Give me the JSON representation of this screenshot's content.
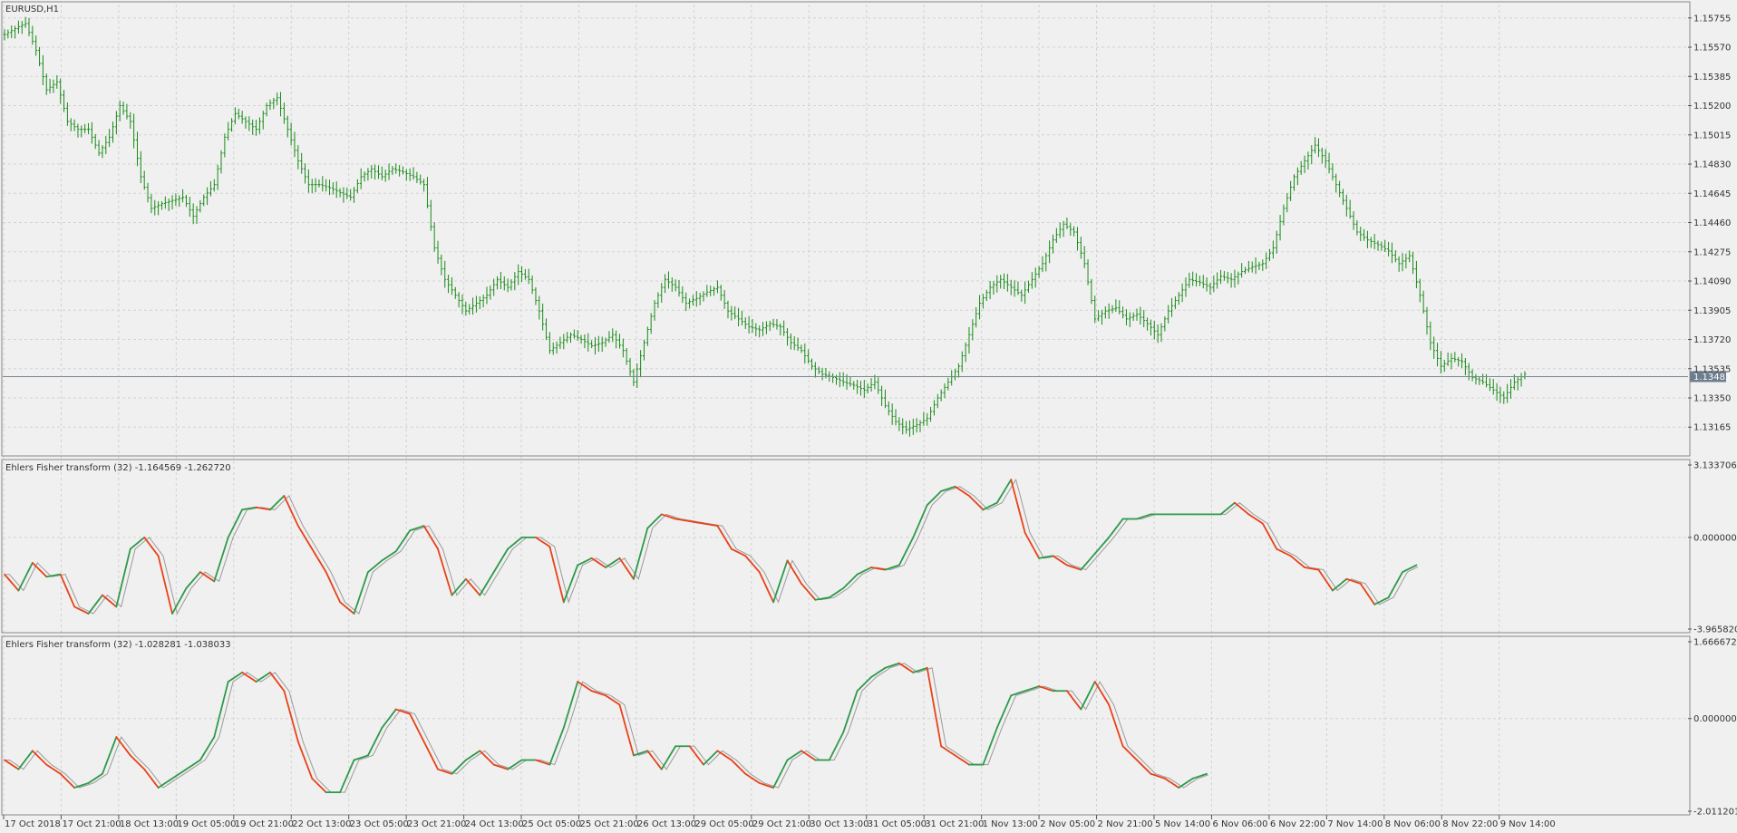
{
  "window": {
    "main_title": "EURUSD,H1",
    "current_price_label": "1.13485"
  },
  "chart_data": [
    {
      "type": "candlestick",
      "title": "EURUSD,H1",
      "ylim": [
        1.13,
        1.1584
      ],
      "y_ticks": [
        "1.15755",
        "1.15570",
        "1.15385",
        "1.15200",
        "1.15015",
        "1.14830",
        "1.14645",
        "1.14460",
        "1.14275",
        "1.14090",
        "1.13905",
        "1.13720",
        "1.13535",
        "1.13350",
        "1.13165"
      ],
      "current_price": 1.13485,
      "grid": true,
      "bar_color": "#1a8a1a",
      "close_anchors": [
        [
          0,
          1.1565
        ],
        [
          4,
          1.157
        ],
        [
          6,
          1.1572
        ],
        [
          9,
          1.1555
        ],
        [
          12,
          1.153
        ],
        [
          15,
          1.1535
        ],
        [
          18,
          1.151
        ],
        [
          21,
          1.1505
        ],
        [
          24,
          1.1505
        ],
        [
          27,
          1.149
        ],
        [
          30,
          1.15
        ],
        [
          33,
          1.152
        ],
        [
          36,
          1.151
        ],
        [
          39,
          1.1475
        ],
        [
          42,
          1.1455
        ],
        [
          45,
          1.1458
        ],
        [
          48,
          1.146
        ],
        [
          51,
          1.1462
        ],
        [
          54,
          1.145
        ],
        [
          57,
          1.1462
        ],
        [
          60,
          1.147
        ],
        [
          63,
          1.15
        ],
        [
          66,
          1.1515
        ],
        [
          69,
          1.151
        ],
        [
          72,
          1.1505
        ],
        [
          75,
          1.152
        ],
        [
          78,
          1.1525
        ],
        [
          81,
          1.1505
        ],
        [
          84,
          1.1485
        ],
        [
          87,
          1.147
        ],
        [
          90,
          1.147
        ],
        [
          93,
          1.1468
        ],
        [
          96,
          1.1465
        ],
        [
          99,
          1.1462
        ],
        [
          102,
          1.1475
        ],
        [
          105,
          1.148
        ],
        [
          108,
          1.1475
        ],
        [
          111,
          1.148
        ],
        [
          114,
          1.1478
        ],
        [
          117,
          1.1475
        ],
        [
          120,
          1.147
        ],
        [
          123,
          1.143
        ],
        [
          126,
          1.141
        ],
        [
          129,
          1.14
        ],
        [
          132,
          1.139
        ],
        [
          135,
          1.1395
        ],
        [
          138,
          1.14
        ],
        [
          141,
          1.141
        ],
        [
          144,
          1.1405
        ],
        [
          147,
          1.1415
        ],
        [
          150,
          1.141
        ],
        [
          153,
          1.139
        ],
        [
          156,
          1.1365
        ],
        [
          159,
          1.137
        ],
        [
          162,
          1.1375
        ],
        [
          165,
          1.1372
        ],
        [
          168,
          1.1368
        ],
        [
          171,
          1.137
        ],
        [
          174,
          1.1375
        ],
        [
          177,
          1.1365
        ],
        [
          180,
          1.1345
        ],
        [
          183,
          1.137
        ],
        [
          186,
          1.1395
        ],
        [
          189,
          1.141
        ],
        [
          192,
          1.1405
        ],
        [
          195,
          1.1395
        ],
        [
          198,
          1.1398
        ],
        [
          201,
          1.1402
        ],
        [
          204,
          1.1405
        ],
        [
          207,
          1.139
        ],
        [
          210,
          1.1385
        ],
        [
          213,
          1.138
        ],
        [
          216,
          1.1378
        ],
        [
          219,
          1.1382
        ],
        [
          222,
          1.138
        ],
        [
          225,
          1.137
        ],
        [
          228,
          1.1365
        ],
        [
          231,
          1.1355
        ],
        [
          234,
          1.135
        ],
        [
          237,
          1.1348
        ],
        [
          240,
          1.1345
        ],
        [
          243,
          1.1343
        ],
        [
          246,
          1.134
        ],
        [
          249,
          1.1345
        ],
        [
          252,
          1.133
        ],
        [
          255,
          1.132
        ],
        [
          258,
          1.1315
        ],
        [
          261,
          1.1318
        ],
        [
          264,
          1.1322
        ],
        [
          267,
          1.1335
        ],
        [
          270,
          1.1345
        ],
        [
          273,
          1.1355
        ],
        [
          276,
          1.1375
        ],
        [
          279,
          1.1395
        ],
        [
          282,
          1.1405
        ],
        [
          285,
          1.141
        ],
        [
          288,
          1.1405
        ],
        [
          291,
          1.14
        ],
        [
          294,
          1.141
        ],
        [
          297,
          1.142
        ],
        [
          300,
          1.1435
        ],
        [
          303,
          1.1445
        ],
        [
          306,
          1.144
        ],
        [
          309,
          1.142
        ],
        [
          312,
          1.1385
        ],
        [
          315,
          1.139
        ],
        [
          318,
          1.1392
        ],
        [
          321,
          1.1385
        ],
        [
          324,
          1.1388
        ],
        [
          327,
          1.1382
        ],
        [
          330,
          1.1375
        ],
        [
          333,
          1.139
        ],
        [
          336,
          1.14
        ],
        [
          339,
          1.141
        ],
        [
          342,
          1.1408
        ],
        [
          345,
          1.1405
        ],
        [
          348,
          1.1412
        ],
        [
          351,
          1.141
        ],
        [
          354,
          1.1415
        ],
        [
          357,
          1.1418
        ],
        [
          360,
          1.142
        ],
        [
          363,
          1.143
        ],
        [
          366,
          1.1455
        ],
        [
          369,
          1.1475
        ],
        [
          372,
          1.1485
        ],
        [
          375,
          1.1495
        ],
        [
          378,
          1.1485
        ],
        [
          381,
          1.147
        ],
        [
          384,
          1.1455
        ],
        [
          387,
          1.144
        ],
        [
          390,
          1.1435
        ],
        [
          393,
          1.1432
        ],
        [
          396,
          1.1428
        ],
        [
          399,
          1.142
        ],
        [
          402,
          1.1425
        ],
        [
          405,
          1.14
        ],
        [
          408,
          1.137
        ],
        [
          411,
          1.1355
        ],
        [
          414,
          1.136
        ],
        [
          417,
          1.1358
        ],
        [
          420,
          1.1348
        ],
        [
          423,
          1.1345
        ],
        [
          426,
          1.134
        ],
        [
          429,
          1.1335
        ],
        [
          432,
          1.1345
        ],
        [
          435,
          1.135
        ]
      ]
    },
    {
      "type": "line",
      "title": "Ehlers Fisher transform (32) -1.164569 -1.262720",
      "ylim": [
        -3.96582,
        3.133706
      ],
      "y_ticks": [
        "3.133706",
        "0.000000",
        "-3.965820"
      ],
      "up_color": "#2e9a4a",
      "down_color": "#e8431a",
      "signal_color": "#9a9a9a",
      "anchors": [
        [
          0,
          -1.6
        ],
        [
          4,
          -2.3
        ],
        [
          8,
          -1.1
        ],
        [
          12,
          -1.7
        ],
        [
          16,
          -1.6
        ],
        [
          20,
          -3.0
        ],
        [
          24,
          -3.3
        ],
        [
          28,
          -2.5
        ],
        [
          32,
          -3.0
        ],
        [
          36,
          -0.5
        ],
        [
          40,
          0.0
        ],
        [
          44,
          -0.8
        ],
        [
          48,
          -3.3
        ],
        [
          52,
          -2.2
        ],
        [
          56,
          -1.5
        ],
        [
          60,
          -1.9
        ],
        [
          64,
          0.0
        ],
        [
          68,
          1.2
        ],
        [
          72,
          1.3
        ],
        [
          76,
          1.2
        ],
        [
          80,
          1.8
        ],
        [
          84,
          0.5
        ],
        [
          88,
          -0.5
        ],
        [
          92,
          -1.5
        ],
        [
          96,
          -2.8
        ],
        [
          100,
          -3.3
        ],
        [
          104,
          -1.5
        ],
        [
          108,
          -1.0
        ],
        [
          112,
          -0.6
        ],
        [
          116,
          0.3
        ],
        [
          120,
          0.5
        ],
        [
          124,
          -0.5
        ],
        [
          128,
          -2.5
        ],
        [
          132,
          -1.8
        ],
        [
          136,
          -2.5
        ],
        [
          140,
          -1.5
        ],
        [
          144,
          -0.5
        ],
        [
          148,
          0.0
        ],
        [
          152,
          0.0
        ],
        [
          156,
          -0.4
        ],
        [
          160,
          -2.8
        ],
        [
          164,
          -1.2
        ],
        [
          168,
          -0.9
        ],
        [
          172,
          -1.3
        ],
        [
          176,
          -0.9
        ],
        [
          180,
          -1.8
        ],
        [
          184,
          0.4
        ],
        [
          188,
          1.0
        ],
        [
          192,
          0.8
        ],
        [
          196,
          0.7
        ],
        [
          200,
          0.6
        ],
        [
          204,
          0.5
        ],
        [
          208,
          -0.5
        ],
        [
          212,
          -0.8
        ],
        [
          216,
          -1.5
        ],
        [
          220,
          -2.8
        ],
        [
          224,
          -1.0
        ],
        [
          228,
          -2.0
        ],
        [
          232,
          -2.7
        ],
        [
          236,
          -2.6
        ],
        [
          240,
          -2.2
        ],
        [
          244,
          -1.6
        ],
        [
          248,
          -1.3
        ],
        [
          252,
          -1.4
        ],
        [
          256,
          -1.2
        ],
        [
          260,
          0.0
        ],
        [
          264,
          1.4
        ],
        [
          268,
          2.0
        ],
        [
          272,
          2.2
        ],
        [
          276,
          1.8
        ],
        [
          280,
          1.2
        ],
        [
          284,
          1.5
        ],
        [
          288,
          2.5
        ],
        [
          292,
          0.2
        ],
        [
          296,
          -0.9
        ],
        [
          300,
          -0.8
        ],
        [
          304,
          -1.2
        ],
        [
          308,
          -1.4
        ],
        [
          312,
          -0.7
        ],
        [
          316,
          0.0
        ],
        [
          320,
          0.8
        ],
        [
          324,
          0.8
        ],
        [
          328,
          1.0
        ],
        [
          332,
          1.0
        ],
        [
          336,
          1.0
        ],
        [
          340,
          1.0
        ],
        [
          344,
          1.0
        ],
        [
          348,
          1.0
        ],
        [
          352,
          1.5
        ],
        [
          356,
          1.0
        ],
        [
          360,
          0.6
        ],
        [
          364,
          -0.5
        ],
        [
          368,
          -0.8
        ],
        [
          372,
          -1.3
        ],
        [
          376,
          -1.4
        ],
        [
          380,
          -2.3
        ],
        [
          384,
          -1.8
        ],
        [
          388,
          -2.0
        ],
        [
          392,
          -2.9
        ],
        [
          396,
          -2.6
        ],
        [
          400,
          -1.5
        ],
        [
          404,
          -1.2
        ]
      ]
    },
    {
      "type": "line",
      "title": "Ehlers Fisher transform (32) -1.028281 -1.038033",
      "ylim": [
        -2.011201,
        1.666672
      ],
      "y_ticks": [
        "1.666672",
        "0.000000",
        "-2.011201"
      ],
      "up_color": "#2e9a4a",
      "down_color": "#e8431a",
      "signal_color": "#9a9a9a",
      "anchors": [
        [
          0,
          -0.9
        ],
        [
          4,
          -1.1
        ],
        [
          8,
          -0.7
        ],
        [
          12,
          -1.0
        ],
        [
          16,
          -1.2
        ],
        [
          20,
          -1.5
        ],
        [
          24,
          -1.4
        ],
        [
          28,
          -1.2
        ],
        [
          32,
          -0.4
        ],
        [
          36,
          -0.8
        ],
        [
          40,
          -1.1
        ],
        [
          44,
          -1.5
        ],
        [
          48,
          -1.3
        ],
        [
          52,
          -1.1
        ],
        [
          56,
          -0.9
        ],
        [
          60,
          -0.4
        ],
        [
          64,
          0.8
        ],
        [
          68,
          1.0
        ],
        [
          72,
          0.8
        ],
        [
          76,
          1.0
        ],
        [
          80,
          0.6
        ],
        [
          84,
          -0.5
        ],
        [
          88,
          -1.3
        ],
        [
          92,
          -1.6
        ],
        [
          96,
          -1.6
        ],
        [
          100,
          -0.9
        ],
        [
          104,
          -0.8
        ],
        [
          108,
          -0.2
        ],
        [
          112,
          0.2
        ],
        [
          116,
          0.1
        ],
        [
          120,
          -0.5
        ],
        [
          124,
          -1.1
        ],
        [
          128,
          -1.2
        ],
        [
          132,
          -0.9
        ],
        [
          136,
          -0.7
        ],
        [
          140,
          -1.0
        ],
        [
          144,
          -1.1
        ],
        [
          148,
          -0.9
        ],
        [
          152,
          -0.9
        ],
        [
          156,
          -1.0
        ],
        [
          160,
          -0.2
        ],
        [
          164,
          0.8
        ],
        [
          168,
          0.6
        ],
        [
          172,
          0.5
        ],
        [
          176,
          0.3
        ],
        [
          180,
          -0.8
        ],
        [
          184,
          -0.7
        ],
        [
          188,
          -1.1
        ],
        [
          192,
          -0.6
        ],
        [
          196,
          -0.6
        ],
        [
          200,
          -1.0
        ],
        [
          204,
          -0.7
        ],
        [
          208,
          -0.9
        ],
        [
          212,
          -1.2
        ],
        [
          216,
          -1.4
        ],
        [
          220,
          -1.5
        ],
        [
          224,
          -0.9
        ],
        [
          228,
          -0.7
        ],
        [
          232,
          -0.9
        ],
        [
          236,
          -0.9
        ],
        [
          240,
          -0.3
        ],
        [
          244,
          0.6
        ],
        [
          248,
          0.9
        ],
        [
          252,
          1.1
        ],
        [
          256,
          1.2
        ],
        [
          260,
          1.0
        ],
        [
          264,
          1.1
        ],
        [
          268,
          -0.6
        ],
        [
          272,
          -0.8
        ],
        [
          276,
          -1.0
        ],
        [
          280,
          -1.0
        ],
        [
          284,
          -0.2
        ],
        [
          288,
          0.5
        ],
        [
          292,
          0.6
        ],
        [
          296,
          0.7
        ],
        [
          300,
          0.6
        ],
        [
          304,
          0.6
        ],
        [
          308,
          0.2
        ],
        [
          312,
          0.8
        ],
        [
          316,
          0.3
        ],
        [
          320,
          -0.6
        ],
        [
          324,
          -0.9
        ],
        [
          328,
          -1.2
        ],
        [
          332,
          -1.3
        ],
        [
          336,
          -1.5
        ],
        [
          340,
          -1.3
        ],
        [
          344,
          -1.2
        ]
      ]
    }
  ],
  "x_axis": {
    "labels": [
      "17 Oct 2018",
      "17 Oct 21:00",
      "18 Oct 13:00",
      "19 Oct 05:00",
      "19 Oct 21:00",
      "22 Oct 13:00",
      "23 Oct 05:00",
      "23 Oct 21:00",
      "24 Oct 13:00",
      "25 Oct 05:00",
      "25 Oct 21:00",
      "26 Oct 13:00",
      "29 Oct 05:00",
      "29 Oct 21:00",
      "30 Oct 13:00",
      "31 Oct 05:00",
      "31 Oct 21:00",
      "1 Nov 13:00",
      "2 Nov 05:00",
      "2 Nov 21:00",
      "5 Nov 14:00",
      "6 Nov 06:00",
      "6 Nov 22:00",
      "7 Nov 14:00",
      "8 Nov 06:00",
      "8 Nov 22:00",
      "9 Nov 14:00"
    ]
  }
}
